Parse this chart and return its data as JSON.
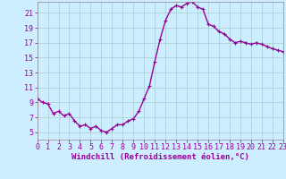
{
  "x_values": [
    0,
    0.5,
    1,
    1.5,
    2,
    2.5,
    3,
    3.5,
    4,
    4.5,
    5,
    5.5,
    6,
    6.5,
    7,
    7.5,
    8,
    8.5,
    9,
    9.5,
    10,
    10.5,
    11,
    11.5,
    12,
    12.5,
    13,
    13.5,
    14,
    14.5,
    15,
    15.5,
    16,
    16.5,
    17,
    17.5,
    18,
    18.5,
    19,
    19.5,
    20,
    20.5,
    21,
    21.5,
    22,
    22.5,
    23
  ],
  "y_values": [
    9.5,
    9.0,
    8.8,
    7.5,
    7.8,
    7.2,
    7.5,
    6.5,
    5.8,
    6.0,
    5.5,
    5.8,
    5.2,
    5.0,
    5.5,
    6.0,
    6.0,
    6.5,
    6.8,
    7.8,
    9.5,
    11.2,
    14.5,
    17.5,
    20.0,
    21.5,
    22.0,
    21.8,
    22.3,
    22.5,
    21.8,
    21.5,
    19.5,
    19.2,
    18.5,
    18.2,
    17.5,
    17.0,
    17.2,
    17.0,
    16.8,
    17.0,
    16.8,
    16.5,
    16.2,
    16.0,
    15.8
  ],
  "line_color": "#990099",
  "marker": "+",
  "marker_size": 3,
  "background_color": "#cceeff",
  "grid_color": "#aacccc",
  "xlabel": "Windchill (Refroidissement éolien,°C)",
  "xlim": [
    0,
    23
  ],
  "ylim": [
    4,
    22.5
  ],
  "yticks": [
    5,
    7,
    9,
    11,
    13,
    15,
    17,
    19,
    21
  ],
  "xticks": [
    0,
    1,
    2,
    3,
    4,
    5,
    6,
    7,
    8,
    9,
    10,
    11,
    12,
    13,
    14,
    15,
    16,
    17,
    18,
    19,
    20,
    21,
    22,
    23
  ],
  "xlabel_fontsize": 6.5,
  "tick_fontsize": 6,
  "line_width": 1.0
}
